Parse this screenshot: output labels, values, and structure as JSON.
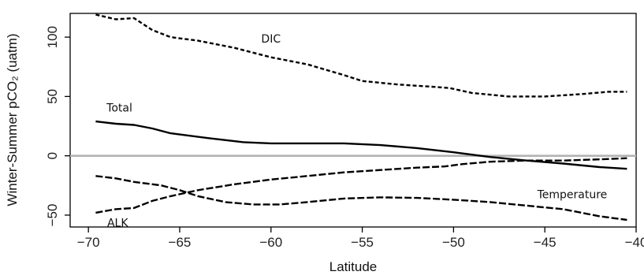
{
  "chart_data": {
    "type": "line",
    "xlabel": "Latitude",
    "ylabel": "Winter-Summer pCO₂ (uatm)",
    "xlim": [
      -71,
      -40
    ],
    "ylim": [
      -60,
      120
    ],
    "xticks": [
      -70,
      -65,
      -60,
      -55,
      -50,
      -45,
      -40
    ],
    "yticks": [
      -50,
      0,
      50,
      100
    ],
    "xtick_labels": [
      "−70",
      "−65",
      "−60",
      "−55",
      "−50",
      "−45",
      "−40"
    ],
    "ytick_labels": [
      "−50",
      "0",
      "50",
      "100"
    ],
    "reference_line": {
      "y": 0,
      "color": "#b3b3b3"
    },
    "grid": false,
    "series": [
      {
        "name": "DIC",
        "dash": "short-dash",
        "points": [
          [
            -69.6,
            119
          ],
          [
            -68.5,
            115
          ],
          [
            -67.5,
            116
          ],
          [
            -66.5,
            106
          ],
          [
            -65.5,
            100
          ],
          [
            -64,
            97
          ],
          [
            -62,
            91
          ],
          [
            -60,
            83
          ],
          [
            -58,
            77
          ],
          [
            -56,
            68
          ],
          [
            -55,
            63
          ],
          [
            -53,
            60
          ],
          [
            -51,
            58
          ],
          [
            -50.2,
            57
          ],
          [
            -49,
            53
          ],
          [
            -47,
            50
          ],
          [
            -45,
            50
          ],
          [
            -43,
            52
          ],
          [
            -41.5,
            54
          ],
          [
            -40.5,
            54
          ]
        ]
      },
      {
        "name": "Total",
        "dash": "solid",
        "points": [
          [
            -69.6,
            29
          ],
          [
            -68.5,
            27
          ],
          [
            -67.5,
            26
          ],
          [
            -66.5,
            23
          ],
          [
            -65.5,
            19
          ],
          [
            -63.5,
            15
          ],
          [
            -61.5,
            11.5
          ],
          [
            -60,
            10.5
          ],
          [
            -58,
            10.5
          ],
          [
            -56,
            10.5
          ],
          [
            -54,
            9
          ],
          [
            -52,
            6.5
          ],
          [
            -50,
            3
          ],
          [
            -48,
            -1
          ],
          [
            -46,
            -4
          ],
          [
            -44,
            -6.5
          ],
          [
            -42,
            -9.5
          ],
          [
            -40.5,
            -11
          ]
        ]
      },
      {
        "name": "Temperature",
        "dash": "long-dash",
        "points": [
          [
            -69.6,
            -17
          ],
          [
            -68.5,
            -19
          ],
          [
            -67.5,
            -22
          ],
          [
            -66,
            -25
          ],
          [
            -65,
            -29
          ],
          [
            -64,
            -34
          ],
          [
            -62.5,
            -39
          ],
          [
            -61,
            -41
          ],
          [
            -59.5,
            -41
          ],
          [
            -58,
            -39
          ],
          [
            -56,
            -36
          ],
          [
            -54,
            -35
          ],
          [
            -52,
            -35.5
          ],
          [
            -50,
            -37
          ],
          [
            -48,
            -39
          ],
          [
            -46,
            -42
          ],
          [
            -44,
            -45
          ],
          [
            -42,
            -51
          ],
          [
            -40.5,
            -54
          ]
        ]
      },
      {
        "name": "ALK",
        "dash": "long-dash",
        "points": [
          [
            -69.6,
            -48
          ],
          [
            -68.5,
            -45
          ],
          [
            -67.5,
            -44
          ],
          [
            -66.5,
            -38
          ],
          [
            -65.5,
            -34
          ],
          [
            -64,
            -29
          ],
          [
            -62,
            -24
          ],
          [
            -60,
            -20
          ],
          [
            -58,
            -17
          ],
          [
            -56,
            -14
          ],
          [
            -54,
            -12
          ],
          [
            -52,
            -10
          ],
          [
            -50.5,
            -9
          ],
          [
            -49.5,
            -7
          ],
          [
            -48,
            -5
          ],
          [
            -46,
            -4
          ],
          [
            -44,
            -4
          ],
          [
            -42,
            -3
          ],
          [
            -40.5,
            -2
          ]
        ]
      }
    ],
    "annotations": [
      {
        "text": "DIC",
        "x": -60,
        "y": 98,
        "series": "DIC"
      },
      {
        "text": "Total",
        "x": -68.3,
        "y": 40,
        "series": "Total"
      },
      {
        "text": "Temperature",
        "x": -43.5,
        "y": -33,
        "series": "Temperature"
      },
      {
        "text": "ALK",
        "x": -68.4,
        "y": -57,
        "series": "ALK"
      }
    ]
  }
}
